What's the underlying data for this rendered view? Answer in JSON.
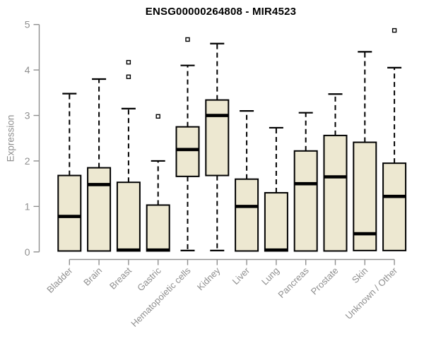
{
  "chart_data": {
    "type": "boxplot",
    "title": "ENSG00000264808 - MIR4523",
    "ylabel": "Expression",
    "xlabel": "",
    "ylim": [
      0,
      5
    ],
    "yticks": [
      0,
      1,
      2,
      3,
      4,
      5
    ],
    "grid": false,
    "legend": "none",
    "x_label_rotation_deg": 45,
    "categories": [
      "Bladder",
      "Brain",
      "Breast",
      "Gastric",
      "Hematopoietic cells",
      "Kidney",
      "Liver",
      "Lung",
      "Pancreas",
      "Prostate",
      "Skin",
      "Unknown / Other"
    ],
    "boxes": [
      {
        "category": "Bladder",
        "whisker_low": 0.02,
        "q1": 0.02,
        "median": 0.78,
        "q3": 1.68,
        "whisker_high": 3.48,
        "outliers": []
      },
      {
        "category": "Brain",
        "whisker_low": 0.02,
        "q1": 0.02,
        "median": 1.48,
        "q3": 1.85,
        "whisker_high": 3.8,
        "outliers": []
      },
      {
        "category": "Breast",
        "whisker_low": 0.02,
        "q1": 0.02,
        "median": 0.04,
        "q3": 1.53,
        "whisker_high": 3.15,
        "outliers": [
          3.85,
          4.17
        ]
      },
      {
        "category": "Gastric",
        "whisker_low": 0.02,
        "q1": 0.02,
        "median": 0.04,
        "q3": 1.03,
        "whisker_high": 2.0,
        "outliers": [
          2.98
        ]
      },
      {
        "category": "Hematopoietic cells",
        "whisker_low": 0.03,
        "q1": 1.66,
        "median": 2.25,
        "q3": 2.75,
        "whisker_high": 4.1,
        "outliers": [
          4.67
        ]
      },
      {
        "category": "Kidney",
        "whisker_low": 0.03,
        "q1": 1.68,
        "median": 3.0,
        "q3": 3.34,
        "whisker_high": 4.58,
        "outliers": []
      },
      {
        "category": "Liver",
        "whisker_low": 0.02,
        "q1": 0.02,
        "median": 1.0,
        "q3": 1.6,
        "whisker_high": 3.1,
        "outliers": []
      },
      {
        "category": "Lung",
        "whisker_low": 0.02,
        "q1": 0.02,
        "median": 0.04,
        "q3": 1.3,
        "whisker_high": 2.73,
        "outliers": []
      },
      {
        "category": "Pancreas",
        "whisker_low": 0.02,
        "q1": 0.02,
        "median": 1.5,
        "q3": 2.22,
        "whisker_high": 3.06,
        "outliers": []
      },
      {
        "category": "Prostate",
        "whisker_low": 0.02,
        "q1": 0.02,
        "median": 1.65,
        "q3": 2.56,
        "whisker_high": 3.47,
        "outliers": []
      },
      {
        "category": "Skin",
        "whisker_low": 0.03,
        "q1": 0.03,
        "median": 0.4,
        "q3": 2.41,
        "whisker_high": 4.4,
        "outliers": []
      },
      {
        "category": "Unknown / Other",
        "whisker_low": 0.03,
        "q1": 0.03,
        "median": 1.22,
        "q3": 1.95,
        "whisker_high": 4.05,
        "outliers": [
          4.87
        ]
      }
    ],
    "colors": {
      "box_fill": "#EDE8D1",
      "box_border": "#000000",
      "median": "#000000",
      "whisker": "#000000",
      "outlier_stroke": "#000000",
      "outlier_fill": "#ffffff",
      "axis": "#8f8f8f",
      "tick_label": "#8f8f8f",
      "title": "#000000",
      "background": "#ffffff"
    }
  }
}
